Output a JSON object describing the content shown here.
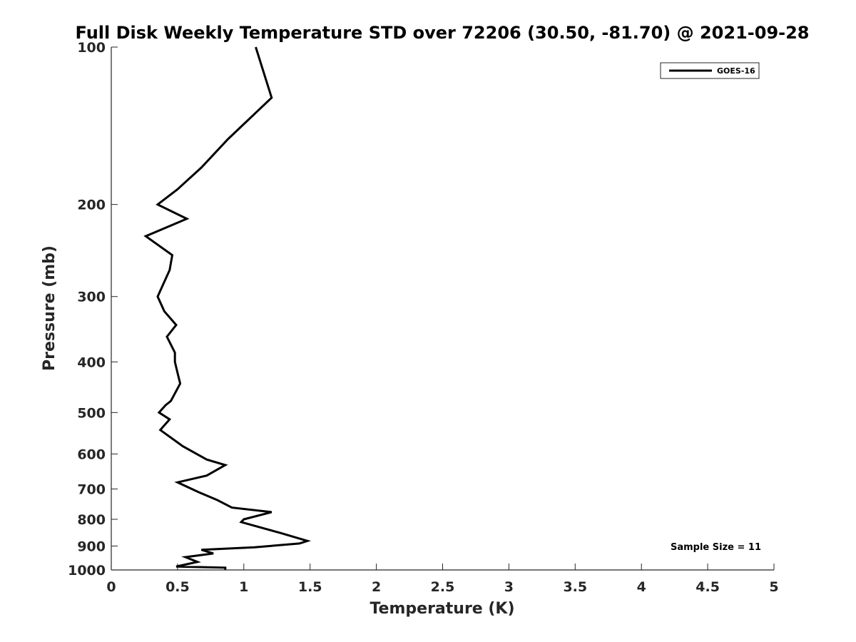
{
  "chart_data": {
    "type": "line",
    "title": "Full Disk Weekly Temperature STD over 72206 (30.50, -81.70) @ 2021-09-28",
    "xlabel": "Temperature (K)",
    "ylabel": "Pressure (mb)",
    "xlim": [
      0,
      5
    ],
    "ylim": [
      100,
      1000
    ],
    "y_scale": "log",
    "y_reversed": true,
    "x_ticks": [
      0,
      0.5,
      1,
      1.5,
      2,
      2.5,
      3,
      3.5,
      4,
      4.5,
      5
    ],
    "x_tick_labels": [
      "0",
      "0.5",
      "1",
      "1.5",
      "2",
      "2.5",
      "3",
      "3.5",
      "4",
      "4.5",
      "5"
    ],
    "y_ticks": [
      100,
      200,
      300,
      400,
      500,
      600,
      700,
      800,
      900,
      1000
    ],
    "y_tick_labels": [
      "100",
      "200",
      "300",
      "400",
      "500",
      "600",
      "700",
      "800",
      "900",
      "1000"
    ],
    "grid": false,
    "legend_position": "top-right",
    "series": [
      {
        "name": "GOES-16",
        "color": "#000000",
        "points": [
          [
            1.09,
            100
          ],
          [
            1.21,
            125
          ],
          [
            0.88,
            150
          ],
          [
            0.68,
            170
          ],
          [
            0.5,
            187
          ],
          [
            0.35,
            200
          ],
          [
            0.57,
            213
          ],
          [
            0.26,
            230
          ],
          [
            0.46,
            250
          ],
          [
            0.44,
            267
          ],
          [
            0.35,
            300
          ],
          [
            0.4,
            320
          ],
          [
            0.49,
            340
          ],
          [
            0.42,
            358
          ],
          [
            0.48,
            384
          ],
          [
            0.48,
            400
          ],
          [
            0.5,
            420
          ],
          [
            0.52,
            440
          ],
          [
            0.45,
            475
          ],
          [
            0.41,
            484
          ],
          [
            0.36,
            500
          ],
          [
            0.44,
            515
          ],
          [
            0.37,
            540
          ],
          [
            0.54,
            580
          ],
          [
            0.72,
            615
          ],
          [
            0.86,
            630
          ],
          [
            0.72,
            660
          ],
          [
            0.5,
            680
          ],
          [
            0.66,
            710
          ],
          [
            0.8,
            735
          ],
          [
            0.91,
            760
          ],
          [
            1.21,
            775
          ],
          [
            1.0,
            800
          ],
          [
            0.98,
            810
          ],
          [
            1.28,
            850
          ],
          [
            1.48,
            880
          ],
          [
            1.42,
            890
          ],
          [
            1.08,
            905
          ],
          [
            0.68,
            915
          ],
          [
            0.77,
            930
          ],
          [
            0.56,
            945
          ],
          [
            0.65,
            965
          ],
          [
            0.49,
            985
          ],
          [
            0.86,
            990
          ],
          [
            0.86,
            1000
          ]
        ]
      }
    ]
  },
  "annotation": {
    "sample_size": "Sample Size = 11"
  }
}
